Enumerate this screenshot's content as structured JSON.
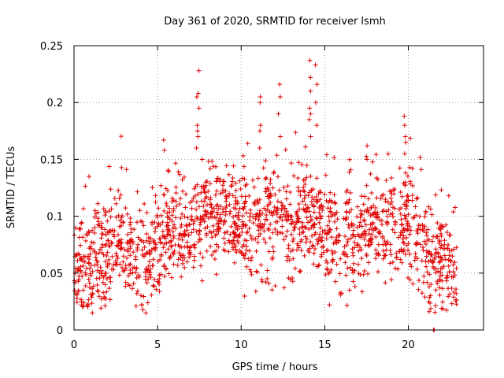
{
  "chart_data": {
    "type": "scatter",
    "title": "Day 361 of 2020, SRMTID for receiver lsmh",
    "xlabel": "GPS time / hours",
    "ylabel": "SRMTID / TECUs",
    "xlim": [
      0,
      24.5
    ],
    "ylim": [
      0,
      0.25
    ],
    "xticks": [
      0,
      5,
      10,
      15,
      20
    ],
    "xtick_labels": [
      "0",
      "5",
      "10",
      "15",
      "20"
    ],
    "yticks": [
      0,
      0.05,
      0.1,
      0.15,
      0.2,
      0.25
    ],
    "ytick_labels": [
      "0",
      "0.05",
      "0.1",
      "0.15",
      "0.2",
      "0.25"
    ],
    "grid": true,
    "marker": "+",
    "marker_color": "#e00000",
    "trend": [
      [
        0.0,
        0.055
      ],
      [
        1.0,
        0.057
      ],
      [
        2.0,
        0.06
      ],
      [
        2.8,
        0.08
      ],
      [
        3.3,
        0.07
      ],
      [
        4.2,
        0.048
      ],
      [
        5.0,
        0.08
      ],
      [
        6.0,
        0.09
      ],
      [
        7.0,
        0.085
      ],
      [
        8.0,
        0.1
      ],
      [
        9.0,
        0.105
      ],
      [
        10.0,
        0.092
      ],
      [
        11.0,
        0.088
      ],
      [
        12.0,
        0.105
      ],
      [
        13.0,
        0.085
      ],
      [
        14.0,
        0.1
      ],
      [
        15.0,
        0.095
      ],
      [
        16.0,
        0.08
      ],
      [
        17.0,
        0.085
      ],
      [
        18.0,
        0.09
      ],
      [
        19.0,
        0.095
      ],
      [
        20.0,
        0.095
      ],
      [
        20.8,
        0.085
      ],
      [
        21.3,
        0.05
      ],
      [
        22.0,
        0.06
      ],
      [
        23.0,
        0.05
      ]
    ],
    "spread": 0.022,
    "n_points": 1700,
    "x_range": [
      0.0,
      22.9
    ],
    "spikes": [
      {
        "x": 7.4,
        "values": [
          0.228,
          0.208,
          0.205,
          0.195,
          0.18,
          0.175,
          0.17,
          0.16
        ]
      },
      {
        "x": 11.1,
        "values": [
          0.205,
          0.2,
          0.18,
          0.175,
          0.16
        ]
      },
      {
        "x": 12.3,
        "values": [
          0.216,
          0.205,
          0.19,
          0.17
        ]
      },
      {
        "x": 14.1,
        "values": [
          0.237,
          0.222,
          0.21,
          0.195,
          0.19,
          0.185,
          0.17
        ]
      },
      {
        "x": 14.5,
        "values": [
          0.233,
          0.216,
          0.2,
          0.18
        ]
      },
      {
        "x": 19.8,
        "values": [
          0.188,
          0.18,
          0.17,
          0.165,
          0.155
        ]
      },
      {
        "x": 5.4,
        "values": [
          0.167,
          0.158
        ]
      },
      {
        "x": 17.5,
        "values": [
          0.162,
          0.15
        ]
      }
    ],
    "outliers": [
      [
        21.5,
        0.0
      ],
      [
        21.55,
        0.0
      ],
      [
        4.3,
        0.015
      ],
      [
        1.1,
        0.015
      ]
    ]
  }
}
